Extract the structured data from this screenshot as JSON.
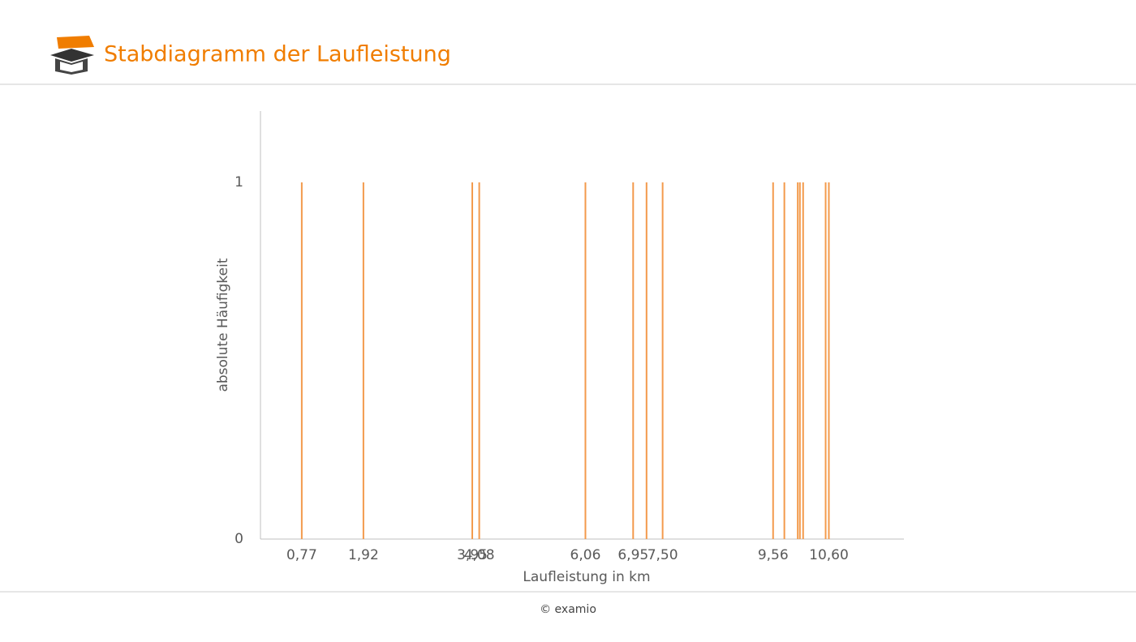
{
  "header": {
    "title": "Stabdiagramm der Laufleistung"
  },
  "chart_data": {
    "type": "bar",
    "x_label": "Laufleistung in km",
    "y_label": "absolute Häufigkeit",
    "x": [
      0.77,
      1.92,
      3.95,
      4.08,
      6.06,
      6.95,
      7.2,
      7.5,
      9.56,
      9.77,
      10.02,
      10.06,
      10.12,
      10.54,
      10.6
    ],
    "values": [
      1,
      1,
      1,
      1,
      1,
      1,
      1,
      1,
      1,
      1,
      1,
      1,
      1,
      1,
      1
    ],
    "color": "#f39a4c",
    "xlim": [
      0,
      12
    ],
    "ylim": [
      0,
      1.2
    ],
    "xticks": [
      {
        "value": 0.77,
        "label": "0,77"
      },
      {
        "value": 1.92,
        "label": "1,92"
      },
      {
        "value": 3.95,
        "label": "3,95"
      },
      {
        "value": 4.08,
        "label": "4,08"
      },
      {
        "value": 6.06,
        "label": "6,06"
      },
      {
        "value": 6.95,
        "label": "6,95"
      },
      {
        "value": 7.5,
        "label": "7,50"
      },
      {
        "value": 9.56,
        "label": "9,56"
      },
      {
        "value": 10.6,
        "label": "10,60"
      }
    ],
    "yticks": [
      0,
      1
    ]
  },
  "footer": {
    "text": "© examio"
  }
}
